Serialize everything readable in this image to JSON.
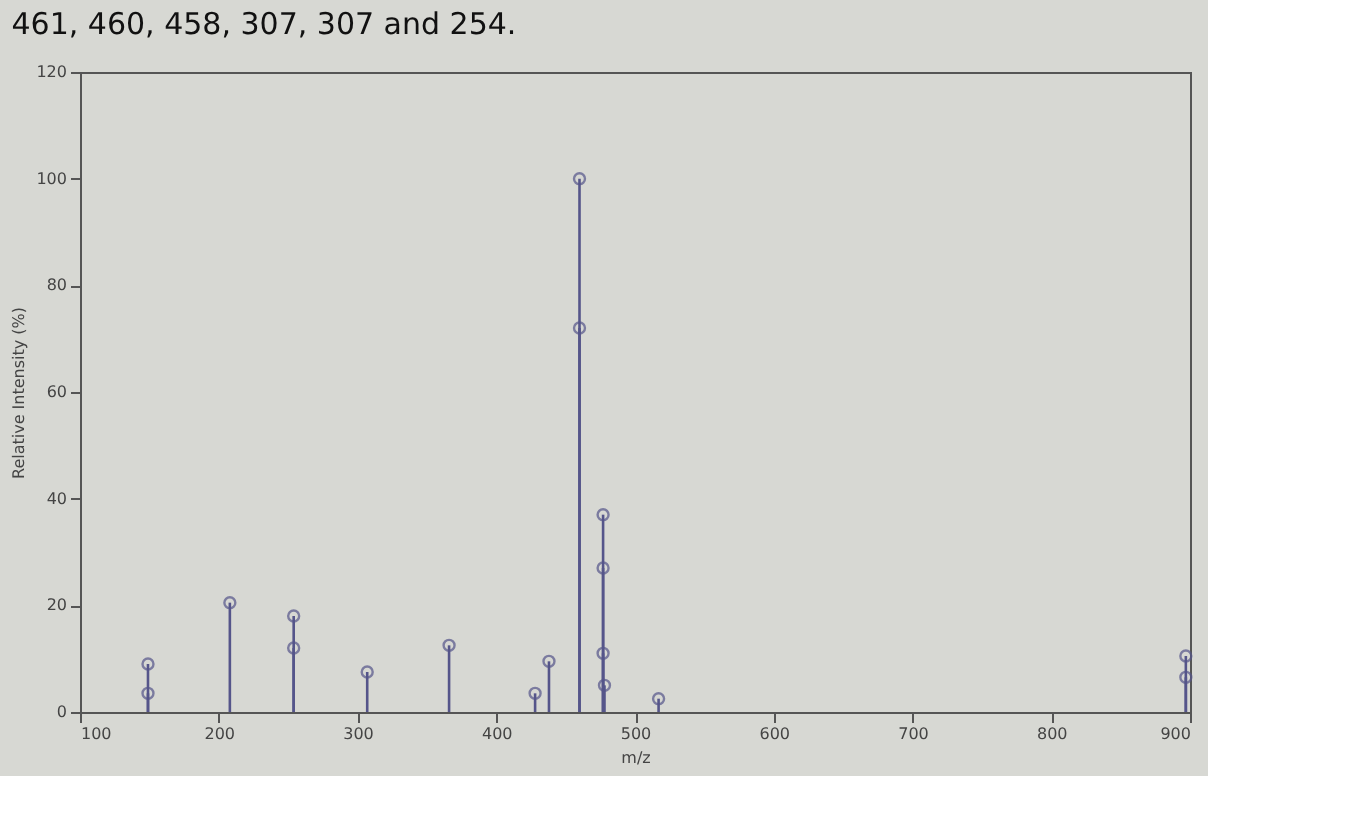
{
  "chart_data": {
    "type": "lollipop",
    "annotations": [
      "461, 460, 458, 307, 307 and 254."
    ],
    "xlabel": "m/z",
    "ylabel": "Relative Intensity (%)",
    "x": [
      149,
      149,
      208,
      254,
      254,
      307,
      366,
      428,
      438,
      460,
      460,
      477,
      477,
      477,
      478,
      517,
      897,
      897
    ],
    "values": [
      9,
      3.5,
      20.5,
      18,
      12,
      7.5,
      12.5,
      3.5,
      9.5,
      100,
      72,
      37,
      27,
      11,
      5,
      2.5,
      10.5,
      6.5
    ],
    "color": "#55558a",
    "marker": "circle",
    "xlim": [
      100,
      900
    ],
    "xticks": [
      100,
      200,
      300,
      400,
      500,
      600,
      700,
      800,
      900
    ],
    "ylim": [
      0,
      120
    ],
    "yticks": [
      0,
      20,
      40,
      60,
      80,
      100,
      120
    ],
    "grid": false
  }
}
